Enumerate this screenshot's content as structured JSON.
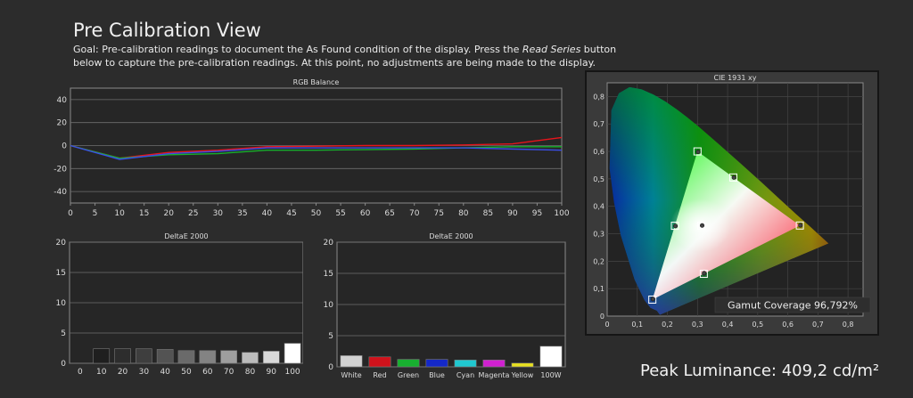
{
  "page": {
    "title": "Pre Calibration View",
    "goal_part1": "Goal: Pre-calibration readings to document the As Found condition of the display. Press the ",
    "goal_em": "Read Series",
    "goal_part2": " button below to capture the pre-calibration readings. At this point, no adjustments are being made to the display.",
    "peak_luminance": "Peak Luminance: 409,2 cd/m²"
  },
  "chart_data": [
    {
      "type": "line",
      "title": "RGB Balance",
      "x": [
        0,
        10,
        20,
        30,
        40,
        50,
        60,
        70,
        80,
        90,
        100
      ],
      "xticks": [
        "0",
        "5",
        "10",
        "15",
        "20",
        "25",
        "30",
        "35",
        "40",
        "45",
        "50",
        "55",
        "60",
        "65",
        "70",
        "75",
        "80",
        "85",
        "90",
        "95",
        "100"
      ],
      "ylim": [
        -50,
        50
      ],
      "yticks": [
        "40",
        "20",
        "0",
        "-20",
        "-40"
      ],
      "series": [
        {
          "color": "#e8141b",
          "values": [
            0,
            -11,
            -6,
            -4,
            -1,
            -0.5,
            0,
            0,
            0.5,
            1.5,
            7
          ]
        },
        {
          "color": "#17b02c",
          "values": [
            0,
            -11,
            -8,
            -7,
            -4,
            -4,
            -3.5,
            -3,
            -2,
            -1,
            -1
          ]
        },
        {
          "color": "#3a4ee6",
          "values": [
            0,
            -12,
            -7,
            -5,
            -2,
            -2,
            -2,
            -2,
            -2,
            -3,
            -4
          ]
        }
      ],
      "grid": true
    },
    {
      "type": "bar",
      "title": "DeltaE 2000",
      "categories": [
        "0",
        "10",
        "20",
        "30",
        "40",
        "50",
        "60",
        "70",
        "80",
        "90",
        "100"
      ],
      "values": [
        0,
        2.4,
        2.4,
        2.4,
        2.3,
        2.1,
        2.1,
        2.1,
        1.8,
        2.0,
        3.3
      ],
      "colors": [
        "#000000",
        "#1f1f1f",
        "#2d2d2d",
        "#3e3e3e",
        "#535353",
        "#6a6a6a",
        "#838383",
        "#9e9e9e",
        "#bcbcbc",
        "#d9d9d9",
        "#ffffff"
      ],
      "ylim": [
        0,
        20
      ],
      "yticks": [
        "20",
        "15",
        "10",
        "5",
        "0"
      ]
    },
    {
      "type": "bar",
      "title": "DeltaE 2000",
      "categories": [
        "White",
        "Red",
        "Green",
        "Blue",
        "Cyan",
        "Magenta",
        "Yellow",
        "100W"
      ],
      "values": [
        1.8,
        1.6,
        1.2,
        1.2,
        1.1,
        1.1,
        0.6,
        3.3
      ],
      "colors": [
        "#d2d2d2",
        "#d0121b",
        "#18b030",
        "#1428c8",
        "#20c8d0",
        "#d020d0",
        "#e8e020",
        "#ffffff"
      ],
      "ylim": [
        0,
        20
      ],
      "yticks": [
        "20",
        "15",
        "10",
        "5",
        "0"
      ]
    },
    {
      "type": "scatter",
      "title": "CIE 1931 xy",
      "xlim": [
        0,
        0.85
      ],
      "ylim": [
        0,
        0.85
      ],
      "xticks": [
        "0",
        "0,1",
        "0,2",
        "0,3",
        "0,4",
        "0,5",
        "0,6",
        "0,7",
        "0,8"
      ],
      "yticks": [
        "0,8",
        "0,7",
        "0,6",
        "0,5",
        "0,4",
        "0,3",
        "0,2",
        "0,1",
        "0"
      ],
      "gamut": [
        [
          0.64,
          0.33
        ],
        [
          0.3,
          0.6
        ],
        [
          0.15,
          0.06
        ]
      ],
      "targets": [
        [
          0.64,
          0.33
        ],
        [
          0.3,
          0.6
        ],
        [
          0.15,
          0.06
        ],
        [
          0.225,
          0.329
        ],
        [
          0.321,
          0.154
        ],
        [
          0.419,
          0.505
        ],
        [
          0.3127,
          0.329
        ]
      ],
      "measured": [
        [
          0.642,
          0.331
        ],
        [
          0.302,
          0.598
        ],
        [
          0.152,
          0.062
        ],
        [
          0.227,
          0.328
        ],
        [
          0.322,
          0.156
        ],
        [
          0.421,
          0.505
        ],
        [
          0.3155,
          0.33
        ]
      ],
      "annotation": "Gamut Coverage 96,792%"
    }
  ]
}
